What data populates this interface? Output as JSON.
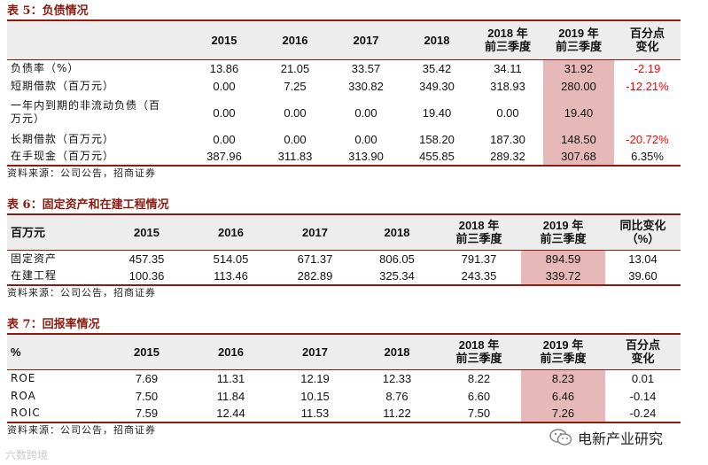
{
  "table5": {
    "title": "表 5：负债情况",
    "header": {
      "c0": "",
      "c1": "2015",
      "c2": "2016",
      "c3": "2017",
      "c4": "2018",
      "c5a": "2018 年",
      "c5b": "前三季度",
      "c6a": "2019 年",
      "c6b": "前三季度",
      "c7a": "百分点",
      "c7b": "变化"
    },
    "rows": [
      {
        "label": "负债率（%）",
        "v": [
          "13.86",
          "21.05",
          "33.57",
          "35.42",
          "34.11",
          "31.92",
          "-2.19"
        ]
      },
      {
        "label": "短期借款（百万元）",
        "v": [
          "0.00",
          "7.25",
          "330.82",
          "349.30",
          "318.93",
          "280.00",
          "-12.21%"
        ]
      },
      {
        "label_a": "一年内到期的非流动负债（百",
        "label_b": "万元）",
        "v": [
          "0.00",
          "0.00",
          "0.00",
          "19.40",
          "0.00",
          "19.40",
          ""
        ]
      },
      {
        "label": "长期借款（百万元）",
        "v": [
          "0.00",
          "0.00",
          "0.00",
          "158.20",
          "187.30",
          "148.50",
          "-20.72%"
        ]
      },
      {
        "label": "在手现金（百万元）",
        "v": [
          "387.96",
          "311.83",
          "313.90",
          "455.85",
          "289.32",
          "307.68",
          "6.35%"
        ]
      }
    ],
    "source": "资料来源：公司公告，招商证券"
  },
  "table6": {
    "title": "表 6：固定资产和在建工程情况",
    "header": {
      "c0": "百万元",
      "c1": "2015",
      "c2": "2016",
      "c3": "2017",
      "c4": "2018",
      "c5a": "2018 年",
      "c5b": "前三季度",
      "c6a": "2019 年",
      "c6b": "前三季度",
      "c7a": "同比变化",
      "c7b": "（%）"
    },
    "rows": [
      {
        "label": "固定资产",
        "v": [
          "457.35",
          "514.05",
          "671.37",
          "806.05",
          "791.37",
          "894.59",
          "13.04"
        ]
      },
      {
        "label": "在建工程",
        "v": [
          "100.36",
          "113.46",
          "282.89",
          "325.34",
          "243.35",
          "339.72",
          "39.60"
        ]
      }
    ],
    "source": "资料来源：公司公告，招商证券"
  },
  "table7": {
    "title": "表 7：回报率情况",
    "header": {
      "c0": "%",
      "c1": "2015",
      "c2": "2016",
      "c3": "2017",
      "c4": "2018",
      "c5a": "2018 年",
      "c5b": "前三季度",
      "c6a": "2019 年",
      "c6b": "前三季度",
      "c7a": "百分点",
      "c7b": "变化"
    },
    "rows": [
      {
        "label": "ROE",
        "v": [
          "7.69",
          "11.31",
          "12.19",
          "12.33",
          "8.22",
          "8.23",
          "0.01"
        ]
      },
      {
        "label": "ROA",
        "v": [
          "7.50",
          "11.84",
          "10.15",
          "8.76",
          "6.60",
          "6.46",
          "-0.14"
        ]
      },
      {
        "label": "ROIC",
        "v": [
          "7.59",
          "12.44",
          "11.53",
          "11.22",
          "7.50",
          "7.26",
          "-0.24"
        ]
      }
    ],
    "source": "资料来源：公司公告，招商证券"
  },
  "watermark_left": "六数跨境",
  "watermark_right": "电新产业研究",
  "colors": {
    "accent": "#8B1A10",
    "highlight": "#E6B8B7",
    "negative": "#FF0000",
    "header_bg": "#EDEDED"
  },
  "icons": {
    "wechat": "wechat-icon"
  }
}
